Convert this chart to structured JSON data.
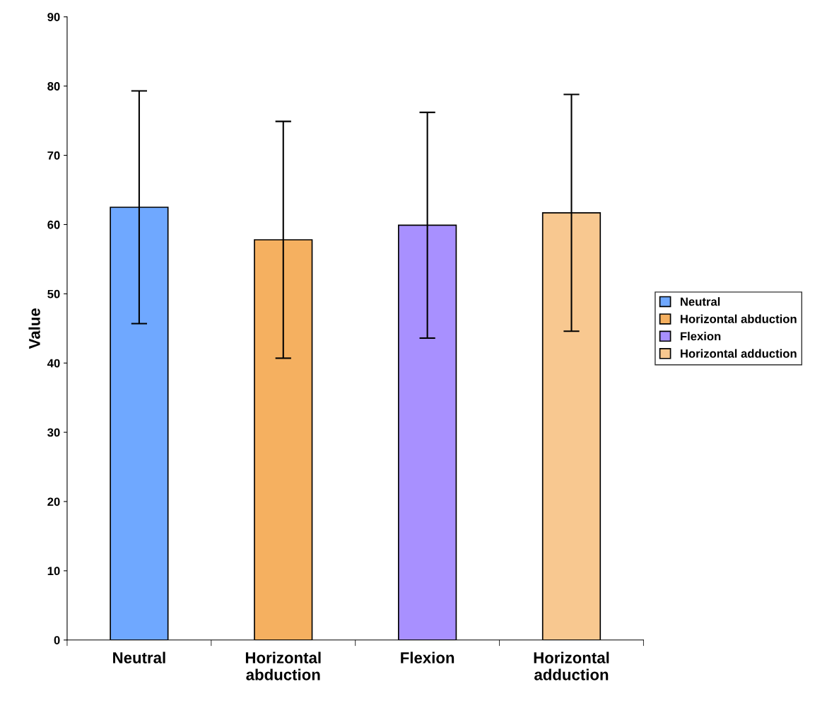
{
  "chart_data": {
    "type": "bar",
    "ylabel": "Value",
    "categories": [
      "Neutral",
      "Horizontal\nabduction",
      "Flexion",
      "Horizontal\nadduction"
    ],
    "series": [
      {
        "name": "Neutral",
        "color": "#6fa8ff",
        "values": [
          62.5,
          null,
          null,
          null
        ],
        "errors": [
          16.8,
          null,
          null,
          null
        ]
      },
      {
        "name": "Horizontal abduction",
        "color": "#f5b060",
        "values": [
          null,
          57.8,
          null,
          null
        ],
        "errors": [
          null,
          17.1,
          null,
          null
        ]
      },
      {
        "name": "Flexion",
        "color": "#a890ff",
        "values": [
          null,
          null,
          59.9,
          null
        ],
        "errors": [
          null,
          null,
          16.3,
          null
        ]
      },
      {
        "name": "Horizontal adduction",
        "color": "#f8c890",
        "values": [
          null,
          null,
          null,
          61.7
        ],
        "errors": [
          null,
          null,
          null,
          17.1
        ]
      }
    ],
    "ylim": [
      0,
      90
    ],
    "yticks": [
      0,
      10,
      20,
      30,
      40,
      50,
      60,
      70,
      80,
      90
    ],
    "legend": "right"
  }
}
